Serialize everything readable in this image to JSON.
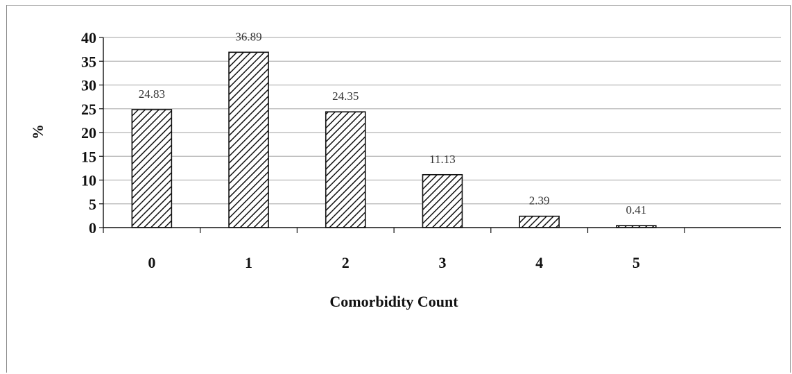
{
  "chart_data": {
    "type": "bar",
    "categories": [
      "0",
      "1",
      "2",
      "3",
      "4",
      "5"
    ],
    "values": [
      24.83,
      36.89,
      24.35,
      11.13,
      2.39,
      0.41
    ],
    "data_labels": [
      "24.83",
      "36.89",
      "24.35",
      "11.13",
      "2.39",
      "0.41"
    ],
    "xlabel": "Comorbidity Count",
    "ylabel": "%",
    "ylim": [
      0,
      40
    ],
    "yticks": [
      "0",
      "5",
      "10",
      "15",
      "20",
      "25",
      "30",
      "35",
      "40"
    ],
    "grid": true,
    "legend": "none",
    "bar_fill": "diagonal hatch",
    "colors": {
      "bar_stroke": "#111111",
      "grid": "#b5b5b5",
      "axis": "#111111"
    }
  }
}
